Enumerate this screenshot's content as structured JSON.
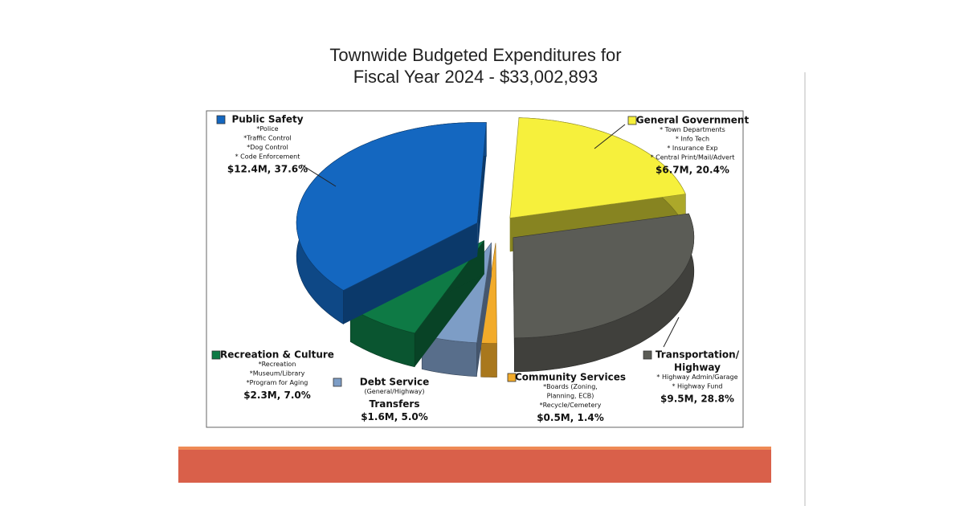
{
  "chart_data": {
    "type": "pie3d",
    "title": [
      "Townwide Budgeted Expenditures for",
      "Fiscal Year 2024 - $33,002,893"
    ],
    "categories": [
      "General Government",
      "Transportation/ Highway",
      "Community Services",
      "Debt Service Transfers",
      "Recreation & Culture",
      "Public Safety"
    ],
    "values": [
      20.4,
      28.8,
      1.4,
      5.0,
      7.0,
      37.6
    ],
    "value_labels": [
      "$6.7M, 20.4%",
      "$9.5M, 28.8%",
      "$0.5M, 1.4%",
      "$1.6M, 5.0%",
      "$2.3M, 7.0%",
      "$12.4M, 37.6%"
    ],
    "colors": [
      "#f6f03c",
      "#5b5c56",
      "#f2ab2a",
      "#7d9dc6",
      "#0e7a45",
      "#1467c0"
    ],
    "label_lines": [
      [
        {
          "text": "General Government",
          "style": "name"
        },
        {
          "text": "* Town Departments",
          "style": "detail"
        },
        {
          "text": "* Info Tech",
          "style": "detail"
        },
        {
          "text": "* Insurance Exp",
          "style": "detail"
        },
        {
          "text": "* Central Print/Mail/Advert",
          "style": "detail"
        }
      ],
      [
        {
          "text": "Transportation/",
          "style": "name"
        },
        {
          "text": "Highway",
          "style": "name"
        },
        {
          "text": "* Highway Admin/Garage",
          "style": "detail"
        },
        {
          "text": "* Highway Fund",
          "style": "detail"
        }
      ],
      [
        {
          "text": "Community Services",
          "style": "name"
        },
        {
          "text": "*Boards (Zoning,",
          "style": "detail"
        },
        {
          "text": "Planning, ECB)",
          "style": "detail"
        },
        {
          "text": "*Recycle/Cemetery",
          "style": "detail"
        }
      ],
      [
        {
          "text": "Debt Service",
          "style": "name"
        },
        {
          "text": "(General/Highway)",
          "style": "detail"
        },
        {
          "text": "Transfers",
          "style": "name"
        }
      ],
      [
        {
          "text": "Recreation & Culture",
          "style": "name"
        },
        {
          "text": "*Recreation",
          "style": "detail"
        },
        {
          "text": "*Museum/Library",
          "style": "detail"
        },
        {
          "text": "*Program for Aging",
          "style": "detail"
        }
      ],
      [
        {
          "text": "Public Safety",
          "style": "name"
        },
        {
          "text": "*Police",
          "style": "detail"
        },
        {
          "text": "*Traffic Control",
          "style": "detail"
        },
        {
          "text": "*Dog Control",
          "style": "detail"
        },
        {
          "text": "* Code Enforcement",
          "style": "detail"
        }
      ]
    ]
  }
}
